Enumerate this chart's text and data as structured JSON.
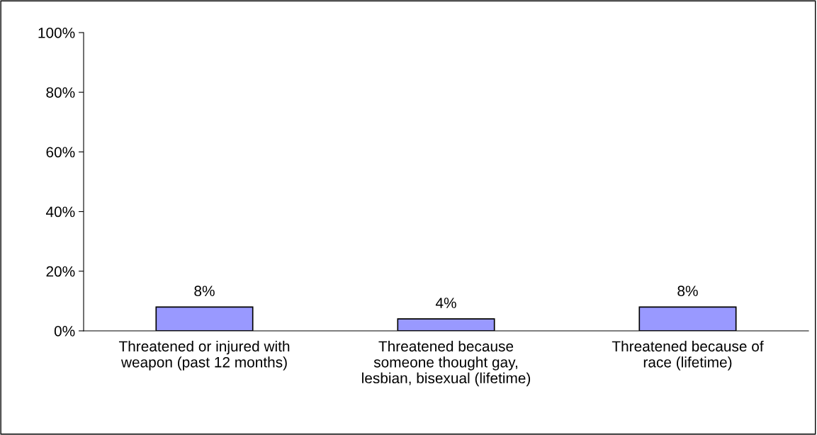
{
  "chart_data": {
    "type": "bar",
    "categories": [
      "Threatened or injured with\nweapon (past 12 months)",
      "Threatened because\nsomeone thought gay,\nlesbian, bisexual (lifetime)",
      "Threatened because of\nrace (lifetime)"
    ],
    "values": [
      8,
      4,
      8
    ],
    "value_labels": [
      "8%",
      "4%",
      "8%"
    ],
    "color": "#9999ff",
    "ylim": [
      0,
      100
    ],
    "yticks": [
      {
        "value": 0,
        "label": "0%"
      },
      {
        "value": 20,
        "label": "20%"
      },
      {
        "value": 40,
        "label": "40%"
      },
      {
        "value": 60,
        "label": "60%"
      },
      {
        "value": 80,
        "label": "80%"
      },
      {
        "value": 100,
        "label": "100%"
      }
    ],
    "grid": false,
    "legend": false
  }
}
